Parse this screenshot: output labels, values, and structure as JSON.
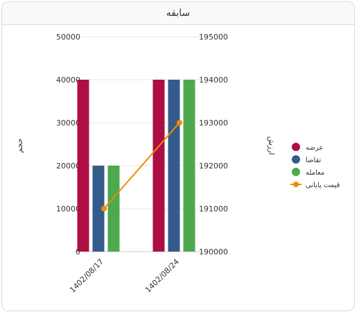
{
  "panel": {
    "title": "سابقه"
  },
  "chart_data": {
    "type": "bar",
    "categories": [
      "1402/08/17",
      "1402/08/24"
    ],
    "series": [
      {
        "name": "عرضه",
        "kind": "bar",
        "axis": "left",
        "color": "#ad0e43",
        "values": [
          40000,
          40000
        ]
      },
      {
        "name": "تقاضا",
        "kind": "bar",
        "axis": "left",
        "color": "#355b8c",
        "values": [
          20000,
          40000
        ]
      },
      {
        "name": "معامله",
        "kind": "bar",
        "axis": "left",
        "color": "#4ea84e",
        "values": [
          20000,
          40000
        ]
      },
      {
        "name": "قیمت پایانی",
        "kind": "line",
        "axis": "right",
        "color": "#f08c00",
        "values": [
          191000,
          193000
        ]
      }
    ],
    "y_left": {
      "label": "حجم",
      "min": 0,
      "max": 50000,
      "ticks": [
        "0",
        "10000",
        "20000",
        "30000",
        "40000",
        "50000"
      ]
    },
    "y_right": {
      "label": "ارزش",
      "min": 190000,
      "max": 195000,
      "ticks": [
        "190000",
        "191000",
        "192000",
        "193000",
        "194000",
        "195000"
      ]
    },
    "grid": true,
    "legend_position": "right"
  }
}
